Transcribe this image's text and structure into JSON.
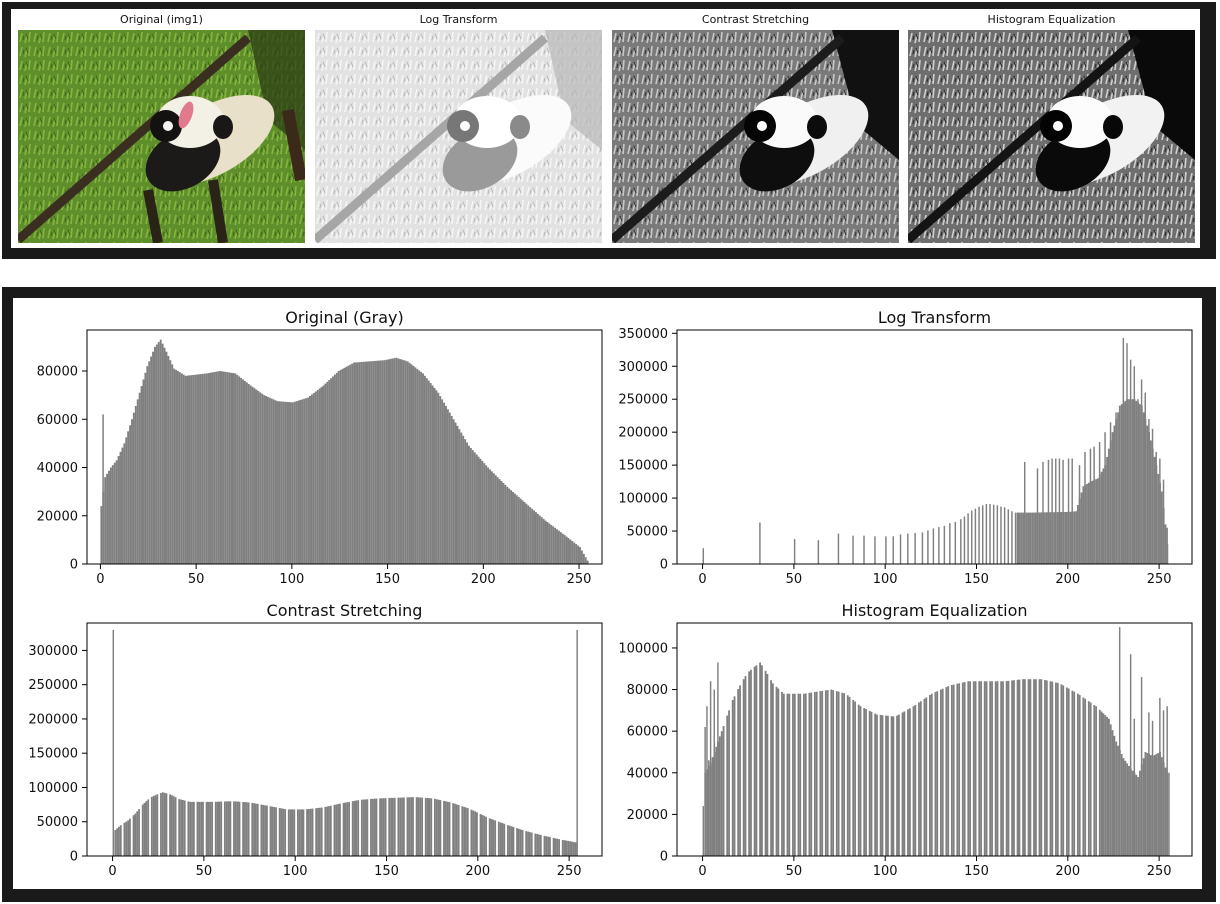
{
  "image_panels": [
    {
      "title": "Original (img1)",
      "style": "color"
    },
    {
      "title": "Log Transform",
      "style": "bright"
    },
    {
      "title": "Contrast Stretching",
      "style": "contrast"
    },
    {
      "title": "Histogram Equalization",
      "style": "equalized"
    }
  ],
  "colors": {
    "bar": "#808080",
    "frame": "#1a1a1a",
    "axis": "#000000"
  },
  "chart_data": [
    {
      "type": "bar",
      "title": "Original (Gray)",
      "xlim": [
        -7,
        262
      ],
      "ylim": [
        0,
        97000
      ],
      "xticks": [
        0,
        50,
        100,
        150,
        200,
        250
      ],
      "yticks": [
        0,
        20000,
        40000,
        60000,
        80000
      ],
      "spikes": [
        [
          1,
          62000
        ]
      ],
      "curve": [
        [
          0,
          24000
        ],
        [
          2,
          36000
        ],
        [
          5,
          40000
        ],
        [
          8,
          43000
        ],
        [
          12,
          50000
        ],
        [
          16,
          60000
        ],
        [
          20,
          71000
        ],
        [
          24,
          82000
        ],
        [
          28,
          90000
        ],
        [
          31,
          93000
        ],
        [
          34,
          88000
        ],
        [
          38,
          81000
        ],
        [
          44,
          78000
        ],
        [
          55,
          79000
        ],
        [
          62,
          80000
        ],
        [
          70,
          79000
        ],
        [
          78,
          74000
        ],
        [
          85,
          70000
        ],
        [
          92,
          67500
        ],
        [
          100,
          67000
        ],
        [
          108,
          69000
        ],
        [
          116,
          74000
        ],
        [
          124,
          80000
        ],
        [
          132,
          83500
        ],
        [
          140,
          84000
        ],
        [
          148,
          84500
        ],
        [
          154,
          85500
        ],
        [
          160,
          84000
        ],
        [
          168,
          79000
        ],
        [
          176,
          71000
        ],
        [
          184,
          60000
        ],
        [
          192,
          49000
        ],
        [
          202,
          40000
        ],
        [
          212,
          32000
        ],
        [
          222,
          25000
        ],
        [
          232,
          18000
        ],
        [
          242,
          12000
        ],
        [
          250,
          7000
        ],
        [
          255,
          0
        ]
      ]
    },
    {
      "type": "bar",
      "title": "Log Transform",
      "xlim": [
        -14,
        268
      ],
      "ylim": [
        0,
        355000
      ],
      "xticks": [
        0,
        50,
        100,
        150,
        200,
        250
      ],
      "yticks": [
        0,
        50000,
        100000,
        150000,
        200000,
        250000,
        300000,
        350000
      ],
      "spikes": [
        [
          0,
          24000
        ],
        [
          31,
          63000
        ],
        [
          50,
          38000
        ],
        [
          63,
          36000
        ],
        [
          74,
          46000
        ],
        [
          82,
          43000
        ],
        [
          88,
          43000
        ],
        [
          94,
          42000
        ],
        [
          100,
          42000
        ],
        [
          104,
          42000
        ],
        [
          108,
          45000
        ],
        [
          112,
          46000
        ],
        [
          116,
          47000
        ],
        [
          120,
          48000
        ],
        [
          123,
          51000
        ],
        [
          126,
          54000
        ],
        [
          129,
          56000
        ],
        [
          132,
          58000
        ],
        [
          135,
          62000
        ],
        [
          138,
          64000
        ],
        [
          141,
          68000
        ],
        [
          143,
          72000
        ],
        [
          145,
          77000
        ],
        [
          147,
          81000
        ],
        [
          149,
          84000
        ],
        [
          151,
          87000
        ],
        [
          153,
          89000
        ],
        [
          155,
          91000
        ],
        [
          157,
          91000
        ],
        [
          159,
          90000
        ],
        [
          161,
          89000
        ],
        [
          163,
          87000
        ],
        [
          165,
          86000
        ],
        [
          167,
          83000
        ],
        [
          169,
          80000
        ],
        [
          171,
          78000
        ],
        [
          176,
          155000
        ],
        [
          183,
          145000
        ],
        [
          186,
          155000
        ],
        [
          189,
          158000
        ],
        [
          191,
          160000
        ],
        [
          193,
          160000
        ],
        [
          195,
          160000
        ],
        [
          197,
          158000
        ],
        [
          200,
          160000
        ],
        [
          202,
          160000
        ],
        [
          206,
          150000
        ],
        [
          209,
          170000
        ],
        [
          212,
          175000
        ],
        [
          214,
          178000
        ],
        [
          217,
          185000
        ],
        [
          220,
          200000
        ],
        [
          223,
          215000
        ],
        [
          226,
          230000
        ],
        [
          228,
          240000
        ],
        [
          230,
          343000
        ],
        [
          232,
          335000
        ],
        [
          234,
          310000
        ],
        [
          236,
          300000
        ],
        [
          238,
          250000
        ],
        [
          240,
          280000
        ],
        [
          242,
          260000
        ],
        [
          244,
          220000
        ],
        [
          246,
          205000
        ],
        [
          248,
          170000
        ],
        [
          250,
          160000
        ],
        [
          252,
          128000
        ],
        [
          254,
          55000
        ]
      ],
      "curve": [
        [
          172,
          78000
        ],
        [
          180,
          78000
        ],
        [
          200,
          79000
        ],
        [
          204,
          80000
        ],
        [
          208,
          118000
        ],
        [
          212,
          125000
        ],
        [
          216,
          130000
        ],
        [
          220,
          150000
        ],
        [
          224,
          200000
        ],
        [
          228,
          240000
        ],
        [
          232,
          250000
        ],
        [
          236,
          250000
        ],
        [
          240,
          240000
        ],
        [
          244,
          200000
        ],
        [
          248,
          150000
        ],
        [
          251,
          110000
        ],
        [
          253,
          60000
        ],
        [
          255,
          0
        ]
      ]
    },
    {
      "type": "bar",
      "title": "Contrast Stretching",
      "xlim": [
        -14,
        268
      ],
      "ylim": [
        0,
        340000
      ],
      "xticks": [
        0,
        50,
        100,
        150,
        200,
        250
      ],
      "yticks": [
        0,
        50000,
        100000,
        150000,
        200000,
        250000,
        300000
      ],
      "spikes": [
        [
          0,
          330000
        ],
        [
          254,
          330000
        ]
      ],
      "curve": [
        [
          1,
          38000
        ],
        [
          4,
          45000
        ],
        [
          8,
          52000
        ],
        [
          12,
          62000
        ],
        [
          16,
          75000
        ],
        [
          20,
          85000
        ],
        [
          24,
          90000
        ],
        [
          27,
          93000
        ],
        [
          31,
          90000
        ],
        [
          36,
          83000
        ],
        [
          42,
          79000
        ],
        [
          55,
          79000
        ],
        [
          65,
          80000
        ],
        [
          75,
          78000
        ],
        [
          85,
          73000
        ],
        [
          95,
          68000
        ],
        [
          105,
          68000
        ],
        [
          115,
          71000
        ],
        [
          125,
          77000
        ],
        [
          135,
          82000
        ],
        [
          145,
          84000
        ],
        [
          155,
          85000
        ],
        [
          165,
          86000
        ],
        [
          175,
          84000
        ],
        [
          185,
          78000
        ],
        [
          195,
          69000
        ],
        [
          205,
          56000
        ],
        [
          215,
          46000
        ],
        [
          225,
          37000
        ],
        [
          235,
          30000
        ],
        [
          245,
          24000
        ],
        [
          253,
          20000
        ]
      ]
    },
    {
      "type": "bar",
      "title": "Histogram Equalization",
      "xlim": [
        -14,
        268
      ],
      "ylim": [
        0,
        112000
      ],
      "xticks": [
        0,
        50,
        100,
        150,
        200,
        250
      ],
      "yticks": [
        0,
        20000,
        40000,
        60000,
        80000,
        100000
      ],
      "spikes": [
        [
          0,
          24000
        ],
        [
          1,
          62000
        ],
        [
          2,
          72000
        ],
        [
          3,
          46000
        ],
        [
          4,
          84000
        ],
        [
          5,
          43000
        ],
        [
          6,
          80000
        ],
        [
          8,
          93000
        ],
        [
          228,
          110000
        ],
        [
          234,
          97000
        ],
        [
          236,
          66000
        ],
        [
          240,
          86000
        ],
        [
          244,
          69000
        ],
        [
          246,
          65000
        ],
        [
          250,
          76000
        ],
        [
          252,
          70000
        ],
        [
          254,
          72000
        ],
        [
          255,
          40000
        ]
      ],
      "curve": [
        [
          1,
          40000
        ],
        [
          4,
          45000
        ],
        [
          8,
          55000
        ],
        [
          12,
          65000
        ],
        [
          16,
          75000
        ],
        [
          20,
          82000
        ],
        [
          24,
          88000
        ],
        [
          28,
          91000
        ],
        [
          31,
          93000
        ],
        [
          34,
          89000
        ],
        [
          38,
          83000
        ],
        [
          44,
          78000
        ],
        [
          55,
          78000
        ],
        [
          62,
          79000
        ],
        [
          70,
          80000
        ],
        [
          78,
          78000
        ],
        [
          86,
          72000
        ],
        [
          95,
          68000
        ],
        [
          105,
          67000
        ],
        [
          115,
          72000
        ],
        [
          125,
          78000
        ],
        [
          135,
          82000
        ],
        [
          145,
          84000
        ],
        [
          155,
          84000
        ],
        [
          165,
          84000
        ],
        [
          175,
          85000
        ],
        [
          185,
          85000
        ],
        [
          195,
          83000
        ],
        [
          205,
          78000
        ],
        [
          215,
          72000
        ],
        [
          222,
          66000
        ],
        [
          226,
          55000
        ],
        [
          230,
          47000
        ],
        [
          234,
          42000
        ],
        [
          238,
          38000
        ],
        [
          242,
          50000
        ],
        [
          246,
          48000
        ],
        [
          250,
          50000
        ],
        [
          254,
          40000
        ]
      ],
      "gap_from": 10,
      "gap_to": 218,
      "gap_step": 3
    }
  ]
}
